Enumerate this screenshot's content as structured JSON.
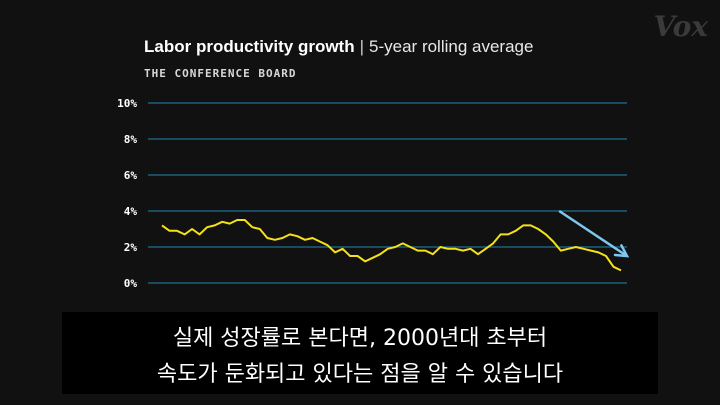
{
  "header": {
    "title": "Labor productivity growth",
    "separator": "|",
    "subtitle": "5-year rolling average",
    "source": "THE CONFERENCE BOARD",
    "logo": "Vox"
  },
  "captions": {
    "line1": "실제 성장률로 본다면, 2000년대 초부터",
    "line2": "속도가 둔화되고 있다는 점을 알 수 있습니다"
  },
  "colors": {
    "background": "#111111",
    "line": "#f5e11a",
    "grid": "#1f6f8f",
    "arrow": "#7ec8f0"
  },
  "chart_data": {
    "type": "line",
    "title": "Labor productivity growth",
    "subtitle": "5-year rolling average",
    "ylim": [
      0,
      10
    ],
    "yticks": [
      "10%",
      "8%",
      "6%",
      "4%",
      "2%",
      "0%"
    ],
    "ytick_values": [
      10,
      8,
      6,
      4,
      2,
      0
    ],
    "grid": true,
    "series": [
      {
        "values": [
          3.2,
          2.9,
          2.9,
          2.7,
          3.0,
          2.7,
          3.1,
          3.2,
          3.4,
          3.3,
          3.5,
          3.5,
          3.1,
          3.0,
          2.5,
          2.4,
          2.5,
          2.7,
          2.6,
          2.4,
          2.5,
          2.3,
          2.1,
          1.7,
          1.9,
          1.5,
          1.5,
          1.2,
          1.4,
          1.6,
          1.9,
          2.0,
          2.2,
          2.0,
          1.8,
          1.8,
          1.6,
          2.0,
          1.9,
          1.9,
          1.8,
          1.9,
          1.6,
          1.9,
          2.2,
          2.7,
          2.7,
          2.9,
          3.2,
          3.2,
          3.0,
          2.7,
          2.3,
          1.8,
          1.9,
          2.0,
          1.9,
          1.8,
          1.7,
          1.5,
          0.9,
          0.7
        ]
      }
    ],
    "trend_arrow": {
      "from": [
        0.8,
        4.0
      ],
      "to": [
        1.0,
        1.5
      ]
    }
  }
}
